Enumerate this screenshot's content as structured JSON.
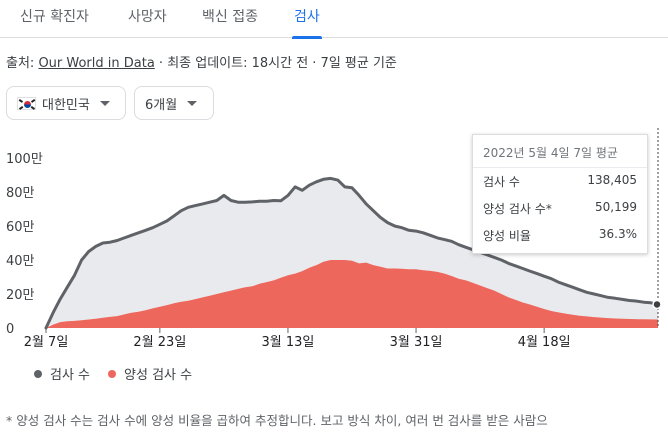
{
  "tabs": [
    {
      "label": "신규 확진자",
      "active": false
    },
    {
      "label": "사망자",
      "active": false
    },
    {
      "label": "백신 접종",
      "active": false
    },
    {
      "label": "검사",
      "active": true
    }
  ],
  "source": {
    "prefix": "출처: ",
    "link": "Our World in Data",
    "suffix": " · 최종 업데이트: 18시간 전 · 7일 평균 기준"
  },
  "filters": {
    "country": "대한민국",
    "period": "6개월"
  },
  "tooltip": {
    "title": "2022년 5월 4일 7일 평균",
    "rows": [
      {
        "label": "검사 수",
        "value": "138,405"
      },
      {
        "label": "양성 검사 수*",
        "value": "50,199"
      },
      {
        "label": "양성 비율",
        "value": "36.3%"
      }
    ]
  },
  "legend": [
    {
      "label": "검사 수",
      "color": "#5f6368"
    },
    {
      "label": "양성 검사 수",
      "color": "#ee675c"
    }
  ],
  "footnote": "* 양성 검사 수는 검사 수에 양성 비율을 곱하여 추정합니다. 보고 방식 차이, 여러 번 검사를 받은 사람으",
  "colors": {
    "tests_line": "#5f6368",
    "tests_fill": "#e8eaed",
    "positive_fill": "#ee675c",
    "accent": "#1a73e8"
  },
  "chart_data": {
    "type": "area",
    "y_ticks": [
      "100만",
      "80만",
      "60만",
      "40만",
      "20만",
      "0"
    ],
    "x_ticks": [
      "2월 7일",
      "2월 23일",
      "3월 13일",
      "3월 31일",
      "4월 18일"
    ],
    "ylim": [
      0,
      1000000
    ],
    "grid": false,
    "legend_position": "bottom-left",
    "x": [
      "2022-02-07",
      "2022-02-08",
      "2022-02-09",
      "2022-02-10",
      "2022-02-11",
      "2022-02-12",
      "2022-02-13",
      "2022-02-14",
      "2022-02-15",
      "2022-02-16",
      "2022-02-17",
      "2022-02-18",
      "2022-02-19",
      "2022-02-20",
      "2022-02-21",
      "2022-02-22",
      "2022-02-23",
      "2022-02-24",
      "2022-02-25",
      "2022-02-26",
      "2022-02-27",
      "2022-02-28",
      "2022-03-01",
      "2022-03-02",
      "2022-03-03",
      "2022-03-04",
      "2022-03-05",
      "2022-03-06",
      "2022-03-07",
      "2022-03-08",
      "2022-03-09",
      "2022-03-10",
      "2022-03-11",
      "2022-03-12",
      "2022-03-13",
      "2022-03-14",
      "2022-03-15",
      "2022-03-16",
      "2022-03-17",
      "2022-03-18",
      "2022-03-19",
      "2022-03-20",
      "2022-03-21",
      "2022-03-22",
      "2022-03-23",
      "2022-03-24",
      "2022-03-25",
      "2022-03-26",
      "2022-03-27",
      "2022-03-28",
      "2022-03-29",
      "2022-03-30",
      "2022-03-31",
      "2022-04-01",
      "2022-04-02",
      "2022-04-03",
      "2022-04-04",
      "2022-04-05",
      "2022-04-06",
      "2022-04-07",
      "2022-04-08",
      "2022-04-09",
      "2022-04-10",
      "2022-04-11",
      "2022-04-12",
      "2022-04-13",
      "2022-04-14",
      "2022-04-15",
      "2022-04-16",
      "2022-04-17",
      "2022-04-18",
      "2022-04-19",
      "2022-04-20",
      "2022-04-21",
      "2022-04-22",
      "2022-04-23",
      "2022-04-24",
      "2022-04-25",
      "2022-04-26",
      "2022-04-27",
      "2022-04-28",
      "2022-04-29",
      "2022-04-30",
      "2022-05-01",
      "2022-05-02",
      "2022-05-03",
      "2022-05-04"
    ],
    "series": [
      {
        "name": "검사 수",
        "values": [
          0,
          90000,
          170000,
          240000,
          310000,
          400000,
          450000,
          480000,
          500000,
          505000,
          515000,
          530000,
          545000,
          560000,
          575000,
          590000,
          610000,
          630000,
          660000,
          690000,
          710000,
          720000,
          730000,
          740000,
          750000,
          780000,
          750000,
          740000,
          740000,
          742000,
          745000,
          745000,
          750000,
          748000,
          780000,
          830000,
          810000,
          840000,
          860000,
          875000,
          880000,
          870000,
          830000,
          825000,
          780000,
          730000,
          690000,
          650000,
          620000,
          600000,
          590000,
          575000,
          570000,
          560000,
          545000,
          530000,
          520000,
          510000,
          490000,
          475000,
          460000,
          445000,
          430000,
          415000,
          400000,
          380000,
          365000,
          350000,
          335000,
          320000,
          305000,
          290000,
          270000,
          255000,
          240000,
          225000,
          210000,
          200000,
          190000,
          180000,
          175000,
          168000,
          162000,
          158000,
          152000,
          148000,
          138405
        ]
      },
      {
        "name": "양성 검사 수",
        "values": [
          0,
          20000,
          35000,
          40000,
          42000,
          45000,
          50000,
          55000,
          60000,
          65000,
          70000,
          80000,
          90000,
          95000,
          105000,
          115000,
          125000,
          135000,
          145000,
          155000,
          160000,
          170000,
          180000,
          190000,
          200000,
          210000,
          220000,
          230000,
          240000,
          245000,
          260000,
          270000,
          280000,
          295000,
          310000,
          320000,
          335000,
          355000,
          370000,
          390000,
          400000,
          400000,
          400000,
          395000,
          380000,
          385000,
          370000,
          360000,
          350000,
          350000,
          348000,
          346000,
          346000,
          340000,
          336000,
          330000,
          320000,
          306000,
          290000,
          280000,
          265000,
          250000,
          235000,
          220000,
          200000,
          180000,
          165000,
          150000,
          138000,
          125000,
          112000,
          100000,
          92000,
          85000,
          78000,
          72000,
          68000,
          64000,
          61000,
          58000,
          56000,
          54000,
          53000,
          52000,
          51000,
          50500,
          50199
        ]
      }
    ]
  }
}
